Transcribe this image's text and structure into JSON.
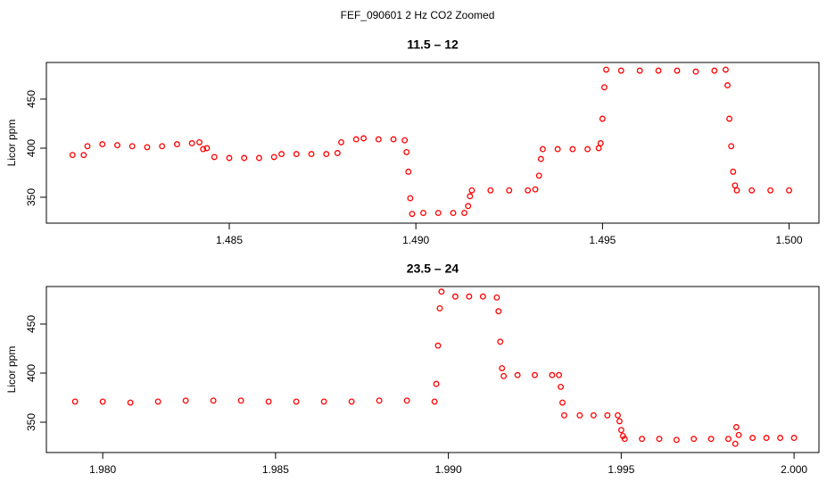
{
  "title": "FEF_090601  2 Hz CO2 Zoomed",
  "chart_data": [
    {
      "type": "scatter",
      "title": "11.5 – 12",
      "y_label": "Licor ppm",
      "color": "#ff0000",
      "x": [
        1.4808,
        1.4811,
        1.4812,
        1.4816,
        1.482,
        1.4824,
        1.4828,
        1.4832,
        1.4836,
        1.484,
        1.4842,
        1.4843,
        1.4844,
        1.4846,
        1.485,
        1.4854,
        1.4858,
        1.4862,
        1.4864,
        1.4868,
        1.4872,
        1.4876,
        1.4879,
        1.488,
        1.4884,
        1.4886,
        1.489,
        1.4894,
        1.4897,
        1.48975,
        1.4898,
        1.48985,
        1.4899,
        1.4902,
        1.4906,
        1.491,
        1.4913,
        1.4914,
        1.49145,
        1.4915,
        1.492,
        1.4925,
        1.493,
        1.4932,
        1.4933,
        1.49335,
        1.4934,
        1.4938,
        1.4942,
        1.4946,
        1.4949,
        1.49495,
        1.495,
        1.49505,
        1.4951,
        1.4955,
        1.496,
        1.4965,
        1.497,
        1.4975,
        1.498,
        1.4983,
        1.49835,
        1.4984,
        1.49845,
        1.4985,
        1.49855,
        1.4986,
        1.499,
        1.4995,
        1.5
      ],
      "values": [
        393,
        393,
        402,
        404,
        403,
        402,
        401,
        402,
        404,
        405,
        406,
        399,
        400,
        391,
        390,
        390,
        390,
        391,
        394,
        394,
        394,
        394,
        395,
        406,
        409,
        410,
        409,
        409,
        408,
        396,
        376,
        349,
        333,
        334,
        334,
        334,
        334,
        341,
        351,
        357,
        357,
        357,
        357,
        358,
        372,
        389,
        399,
        399,
        399,
        399,
        400,
        405,
        430,
        462,
        480,
        479,
        479,
        479,
        479,
        478,
        479,
        480,
        464,
        430,
        402,
        376,
        362,
        357,
        357,
        357,
        357
      ],
      "xlim": [
        1.4801,
        1.5008
      ],
      "ylim": [
        323.6,
        487.3
      ],
      "xticks": [
        1.485,
        {
          "value": 1.49,
          "label": "1.490"
        },
        1.495,
        {
          "value": 1.5,
          "label": "1.500"
        }
      ],
      "yticks": [
        350,
        400,
        450
      ]
    },
    {
      "type": "scatter",
      "title": "23.5 – 24",
      "y_label": "Licor ppm",
      "color": "#ff0000",
      "x": [
        1.9792,
        1.98,
        1.9808,
        1.9816,
        1.9824,
        1.9832,
        1.984,
        1.9848,
        1.9856,
        1.9864,
        1.9872,
        1.988,
        1.9888,
        1.9896,
        1.98965,
        1.9897,
        1.98975,
        1.9898,
        1.9902,
        1.9906,
        1.991,
        1.9914,
        1.99145,
        1.9915,
        1.99155,
        1.9916,
        1.992,
        1.9925,
        1.993,
        1.9932,
        1.99325,
        1.9933,
        1.99335,
        1.9938,
        1.9942,
        1.9946,
        1.9949,
        1.99495,
        1.995,
        1.99505,
        1.9951,
        1.9956,
        1.9961,
        1.9966,
        1.9971,
        1.9976,
        1.9981,
        1.9983,
        1.99833,
        1.9984,
        1.9988,
        1.9992,
        1.9996,
        2.0
      ],
      "values": [
        371,
        371,
        370,
        371,
        372,
        372,
        372,
        371,
        371,
        371,
        371,
        372,
        372,
        371,
        389,
        428,
        466,
        483,
        478,
        478,
        478,
        477,
        463,
        432,
        405,
        397,
        398,
        398,
        398,
        398,
        386,
        370,
        357,
        357,
        357,
        357,
        357,
        351,
        342,
        336,
        333,
        333,
        333,
        332,
        333,
        333,
        333,
        328,
        345,
        337,
        334,
        334,
        334,
        334
      ],
      "xlim": [
        1.97837,
        2.00072
      ],
      "ylim": [
        319.1,
        488.2
      ],
      "xticks": [
        {
          "value": 1.98,
          "label": "1.980"
        },
        1.985,
        {
          "value": 1.99,
          "label": "1.990"
        },
        1.995,
        {
          "value": 2.0,
          "label": "2.000"
        }
      ],
      "yticks": [
        350,
        400,
        450
      ]
    }
  ]
}
